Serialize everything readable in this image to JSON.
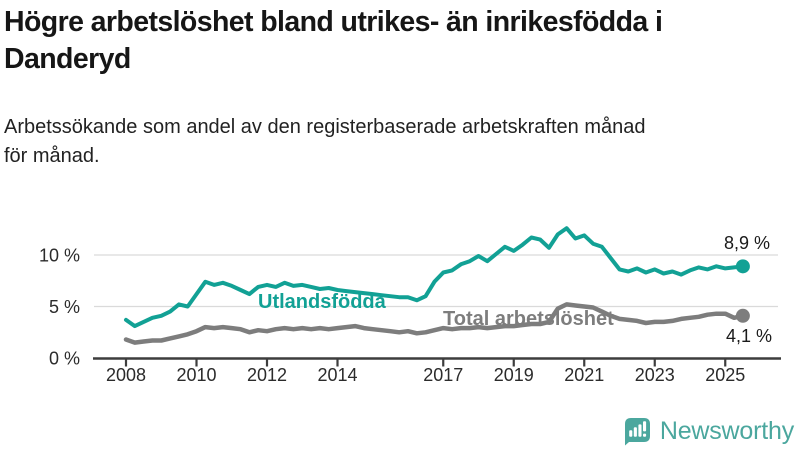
{
  "header": {
    "title_line1": "Högre arbetslöshet bland utrikes- än inrikesfödda i",
    "title_line2": "Danderyd",
    "subtitle_line1": "Arbetssökande som andel av den registerbaserade arbetskraften månad",
    "subtitle_line2": "för månad."
  },
  "chart_data": {
    "type": "line",
    "title": "Högre arbetslöshet bland utrikes- än inrikesfödda i Danderyd",
    "subtitle": "Arbetssökande som andel av den registerbaserade arbetskraften månad för månad.",
    "xlabel": "",
    "ylabel": "",
    "grid": "horizontal-y",
    "legend_position": "inline-labels",
    "xlim": [
      2007.1,
      2026.9
    ],
    "ylim": [
      0,
      13.8
    ],
    "x": [
      2008.0,
      2008.25,
      2008.5,
      2008.75,
      2009.0,
      2009.25,
      2009.5,
      2009.75,
      2010.0,
      2010.25,
      2010.5,
      2010.75,
      2011.0,
      2011.25,
      2011.5,
      2011.75,
      2012.0,
      2012.25,
      2012.5,
      2012.75,
      2013.0,
      2013.25,
      2013.5,
      2013.75,
      2014.0,
      2014.25,
      2014.5,
      2014.75,
      2015.0,
      2015.25,
      2015.5,
      2015.75,
      2016.0,
      2016.25,
      2016.5,
      2016.75,
      2017.0,
      2017.25,
      2017.5,
      2017.75,
      2018.0,
      2018.25,
      2018.5,
      2018.75,
      2019.0,
      2019.25,
      2019.5,
      2019.75,
      2020.0,
      2020.25,
      2020.5,
      2020.75,
      2021.0,
      2021.25,
      2021.5,
      2021.75,
      2022.0,
      2022.25,
      2022.5,
      2022.75,
      2023.0,
      2023.25,
      2023.5,
      2023.75,
      2024.0,
      2024.25,
      2024.5,
      2024.75,
      2025.0,
      2025.25,
      2025.5
    ],
    "series": [
      {
        "name": "Utlandsfödda",
        "color": "#12a195",
        "stroke_width": 4,
        "end_value_label": "8,9 %",
        "values": [
          3.7,
          3.1,
          3.5,
          3.9,
          4.1,
          4.5,
          5.2,
          5.0,
          6.2,
          7.4,
          7.1,
          7.3,
          7.0,
          6.6,
          6.2,
          6.9,
          7.1,
          6.9,
          7.3,
          7.0,
          7.1,
          6.9,
          6.7,
          6.8,
          6.6,
          6.5,
          6.4,
          6.3,
          6.2,
          6.1,
          6.0,
          5.9,
          5.9,
          5.6,
          6.0,
          7.4,
          8.3,
          8.5,
          9.1,
          9.4,
          9.9,
          9.4,
          10.1,
          10.8,
          10.4,
          11.0,
          11.7,
          11.5,
          10.7,
          12.0,
          12.6,
          11.6,
          11.9,
          11.1,
          10.8,
          9.7,
          8.6,
          8.4,
          8.7,
          8.3,
          8.6,
          8.2,
          8.4,
          8.1,
          8.5,
          8.8,
          8.6,
          8.9,
          8.7,
          8.8,
          8.9
        ]
      },
      {
        "name": "Total arbetslöshet",
        "color": "#7d7d7d",
        "stroke_width": 4.5,
        "end_value_label": "4,1 %",
        "values": [
          1.8,
          1.5,
          1.6,
          1.7,
          1.7,
          1.9,
          2.1,
          2.3,
          2.6,
          3.0,
          2.9,
          3.0,
          2.9,
          2.8,
          2.5,
          2.7,
          2.6,
          2.8,
          2.9,
          2.8,
          2.9,
          2.8,
          2.9,
          2.8,
          2.9,
          3.0,
          3.1,
          2.9,
          2.8,
          2.7,
          2.6,
          2.5,
          2.6,
          2.4,
          2.5,
          2.7,
          2.9,
          2.8,
          2.9,
          2.9,
          3.0,
          2.9,
          3.0,
          3.1,
          3.1,
          3.2,
          3.3,
          3.3,
          3.5,
          4.8,
          5.2,
          5.1,
          5.0,
          4.9,
          4.5,
          4.1,
          3.8,
          3.7,
          3.6,
          3.4,
          3.5,
          3.5,
          3.6,
          3.8,
          3.9,
          4.0,
          4.2,
          4.3,
          4.3,
          3.9,
          4.1
        ]
      }
    ],
    "yticks": [
      {
        "value": 0,
        "label": "0 %"
      },
      {
        "value": 5,
        "label": "5 %"
      },
      {
        "value": 10,
        "label": "10 %"
      }
    ],
    "xticks": [
      {
        "value": 2008,
        "label": "2008"
      },
      {
        "value": 2010,
        "label": "2010"
      },
      {
        "value": 2012,
        "label": "2012"
      },
      {
        "value": 2014,
        "label": "2014"
      },
      {
        "value": 2017,
        "label": "2017"
      },
      {
        "value": 2019,
        "label": "2019"
      },
      {
        "value": 2021,
        "label": "2021"
      },
      {
        "value": 2023,
        "label": "2023"
      },
      {
        "value": 2025,
        "label": "2025"
      }
    ],
    "colors": {
      "grid": "#dadada",
      "axis": "#3d3d3d",
      "tick_text": "#2b2b2b"
    }
  },
  "footer": {
    "brand": "Newsworthy",
    "brand_color": "#4ba79e",
    "logo_icon": "bar-chart-speech-bubble-icon"
  }
}
